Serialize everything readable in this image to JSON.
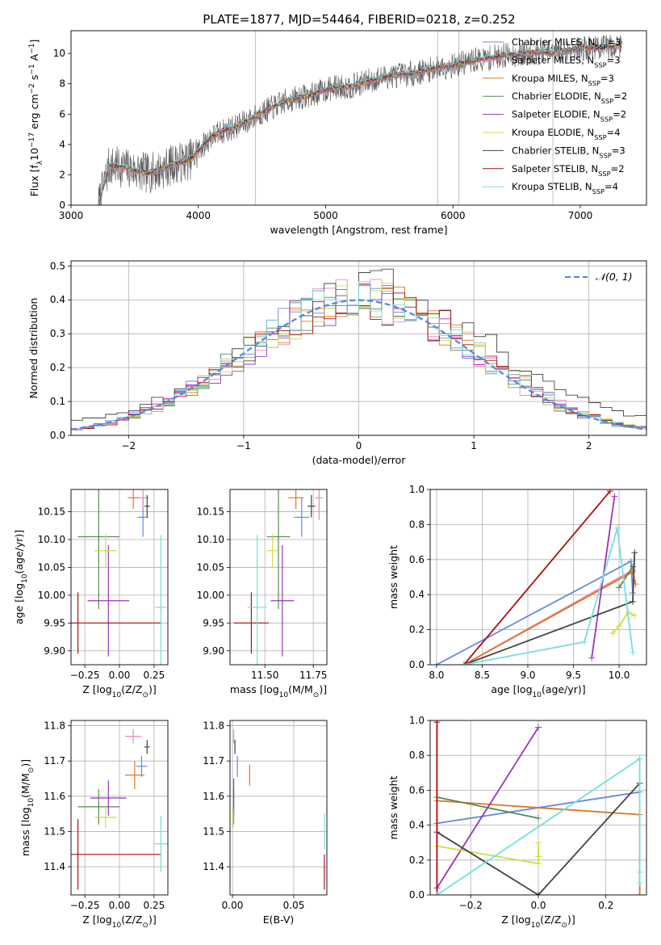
{
  "figure": {
    "title": "PLATE=1877, MJD=54464, FIBERID=0218, z=0.252"
  },
  "colors": {
    "Chabrier MILES": "#6688dd",
    "Salpeter MILES": "#ee88bb",
    "Kroupa MILES": "#dd7722",
    "Chabrier ELODIE": "#558855",
    "Salpeter ELODIE": "#9933bb",
    "Kroupa ELODIE": "#ccdd44",
    "Chabrier STELIB": "#444444",
    "Salpeter STELIB": "#aa1111",
    "Kroupa STELIB": "#77dddd",
    "gaussian": "#5588dd",
    "data_spectrum": "#555555"
  },
  "chart_data": [
    {
      "id": "spectrum",
      "type": "line",
      "xlabel": "wavelength [Angstrom, rest frame]",
      "ylabel_parts": {
        "pre": "Flux [f",
        "sub": "λ",
        "mid": "10",
        "sup": "−17",
        "post": " erg cm",
        "sup2": "−2",
        "post2": " s",
        "sup3": "−1",
        "post3": " A",
        "sup4": "−1",
        "post4": "]"
      },
      "xlim": [
        3000,
        7520
      ],
      "ylim": [
        0,
        11.5
      ],
      "xticks": [
        3000,
        4000,
        5000,
        6000,
        7000
      ],
      "yticks": [
        0,
        2,
        4,
        6,
        8,
        10
      ],
      "grid": false,
      "legend_position": "top-right",
      "legend": [
        {
          "pre": "Chabrier MILES, N",
          "sub": "SSP",
          "post": "=3"
        },
        {
          "pre": "Salpeter MILES, N",
          "sub": "SSP",
          "post": "=3"
        },
        {
          "pre": "Kroupa MILES, N",
          "sub": "SSP",
          "post": "=3"
        },
        {
          "pre": "Chabrier ELODIE, N",
          "sub": "SSP",
          "post": "=2"
        },
        {
          "pre": "Salpeter ELODIE, N",
          "sub": "SSP",
          "post": "=2"
        },
        {
          "pre": "Kroupa ELODIE, N",
          "sub": "SSP",
          "post": "=4"
        },
        {
          "pre": "Chabrier STELIB, N",
          "sub": "SSP",
          "post": "=3"
        },
        {
          "pre": "Salpeter STELIB, N",
          "sub": "SSP",
          "post": "=2"
        },
        {
          "pre": "Kroupa STELIB, N",
          "sub": "SSP",
          "post": "=4"
        }
      ],
      "continuum": {
        "x": [
          3215,
          3300,
          3400,
          3500,
          3600,
          3700,
          3800,
          3900,
          3950,
          4000,
          4100,
          4200,
          4300,
          4400,
          4500,
          4600,
          4700,
          4800,
          4900,
          5000,
          5100,
          5200,
          5300,
          5400,
          5500,
          5600,
          5700,
          5800,
          5900,
          6000,
          6100,
          6200,
          6300,
          6400,
          6500,
          6600,
          6700,
          6800,
          6900,
          7000,
          7100,
          7200,
          7300
        ],
        "y": [
          0.0,
          2.6,
          2.5,
          2.3,
          2.1,
          2.3,
          2.7,
          2.9,
          3.1,
          3.6,
          4.5,
          4.9,
          5.2,
          5.6,
          6.1,
          6.5,
          6.9,
          7.1,
          7.3,
          7.6,
          7.8,
          7.8,
          8.1,
          8.3,
          8.5,
          8.6,
          8.7,
          8.9,
          9.1,
          9.2,
          9.4,
          9.6,
          9.7,
          9.9,
          9.9,
          10.0,
          10.1,
          10.0,
          10.2,
          10.3,
          10.4,
          10.4,
          10.5
        ]
      },
      "spikes": [
        4450,
        5880,
        6045,
        6785
      ]
    },
    {
      "id": "residuals",
      "type": "histogram",
      "xlabel": "(data-model)/error",
      "ylabel": "Normed distribution",
      "xlim": [
        -2.5,
        2.5
      ],
      "ylim": [
        0,
        0.515
      ],
      "xticks": [
        -2,
        -1,
        0,
        1,
        2
      ],
      "yticks": [
        0.0,
        0.1,
        0.2,
        0.3,
        0.4,
        0.5
      ],
      "grid": true,
      "legend_position": "top-right",
      "legend": [
        {
          "text": "𝒩(0, 1)"
        }
      ],
      "bin_width": 0.1
    },
    {
      "id": "age-vs-Z",
      "type": "scatter",
      "xlabel_parts": {
        "pre": "Z [log",
        "sub": "10",
        "post": "(Z/Z",
        "sub2": "⊙",
        "post2": ")]"
      },
      "ylabel_parts": {
        "pre": "age  [log",
        "sub": "10",
        "post": "(age/yr)]"
      },
      "xlim": [
        -0.35,
        0.35
      ],
      "ylim": [
        9.875,
        10.19
      ],
      "xticks": [
        -0.25,
        0.0,
        0.25
      ],
      "xticklabels": [
        "−0.25",
        "0.00",
        "0.25"
      ],
      "yticks": [
        9.9,
        9.95,
        10.0,
        10.05,
        10.1,
        10.15
      ],
      "yticklabels": [
        "9.90",
        "9.95",
        "10.00",
        "10.05",
        "10.10",
        "10.15"
      ],
      "grid": true,
      "points": [
        {
          "model": "Chabrier MILES",
          "x": 0.17,
          "y": 10.14,
          "xerr": 0.04,
          "yerr": 0.035
        },
        {
          "model": "Salpeter MILES",
          "x": 0.17,
          "y": 10.175,
          "xerr": 0.04,
          "yerr": 0.02
        },
        {
          "model": "Kroupa MILES",
          "x": 0.1,
          "y": 10.175,
          "xerr": 0.04,
          "yerr": 0.02
        },
        {
          "model": "Chabrier ELODIE",
          "x": -0.15,
          "y": 10.105,
          "xerr": 0.15,
          "yerr": 0.13
        },
        {
          "model": "Salpeter ELODIE",
          "x": -0.08,
          "y": 9.99,
          "xerr": 0.15,
          "yerr": 0.1
        },
        {
          "model": "Kroupa ELODIE",
          "x": -0.1,
          "y": 10.08,
          "xerr": 0.08,
          "yerr": 0.03
        },
        {
          "model": "Chabrier STELIB",
          "x": 0.2,
          "y": 10.16,
          "xerr": 0.02,
          "yerr": 0.02
        },
        {
          "model": "Salpeter STELIB",
          "x": -0.3,
          "y": 9.95,
          "xerr": 0.6,
          "yerr": 0.055
        },
        {
          "model": "Kroupa STELIB",
          "x": 0.3,
          "y": 9.978,
          "xerr": 0.04,
          "yerr": 0.13
        }
      ]
    },
    {
      "id": "age-vs-mass",
      "type": "scatter",
      "xlabel_parts": {
        "pre": "mass [log",
        "sub": "10",
        "post": "(M/M",
        "sub2": "⊙",
        "post2": ")]"
      },
      "xlim": [
        11.32,
        11.82
      ],
      "ylim": [
        9.875,
        10.19
      ],
      "xticks": [
        11.5,
        11.75
      ],
      "xticklabels": [
        "11.50",
        "11.75"
      ],
      "yticks": [
        9.9,
        9.95,
        10.0,
        10.05,
        10.1,
        10.15
      ],
      "yticklabels": [
        "9.90",
        "9.95",
        "10.00",
        "10.05",
        "10.10",
        "10.15"
      ],
      "grid": true,
      "points": [
        {
          "model": "Chabrier MILES",
          "x": 11.69,
          "y": 10.14,
          "xerr": 0.04,
          "yerr": 0.035
        },
        {
          "model": "Salpeter MILES",
          "x": 11.78,
          "y": 10.175,
          "xerr": 0.02,
          "yerr": 0.04
        },
        {
          "model": "Kroupa MILES",
          "x": 11.66,
          "y": 10.175,
          "xerr": 0.04,
          "yerr": 0.02
        },
        {
          "model": "Chabrier ELODIE",
          "x": 11.57,
          "y": 10.105,
          "xerr": 0.06,
          "yerr": 0.13
        },
        {
          "model": "Salpeter ELODIE",
          "x": 11.59,
          "y": 9.99,
          "xerr": 0.06,
          "yerr": 0.1
        },
        {
          "model": "Kroupa ELODIE",
          "x": 11.54,
          "y": 10.08,
          "xerr": 0.03,
          "yerr": 0.03
        },
        {
          "model": "Chabrier STELIB",
          "x": 11.74,
          "y": 10.16,
          "xerr": 0.02,
          "yerr": 0.02
        },
        {
          "model": "Salpeter STELIB",
          "x": 11.43,
          "y": 9.95,
          "xerr": 0.09,
          "yerr": 0.055
        },
        {
          "model": "Kroupa STELIB",
          "x": 11.46,
          "y": 9.978,
          "xerr": 0.05,
          "yerr": 0.13
        }
      ]
    },
    {
      "id": "weight-vs-age",
      "type": "line",
      "xlabel_parts": {
        "pre": "age  [log",
        "sub": "10",
        "post": "(age/yr)]"
      },
      "ylabel": "mass weight",
      "xlim": [
        7.93,
        10.3
      ],
      "ylim": [
        0,
        1.0
      ],
      "xticks": [
        8.0,
        8.5,
        9.0,
        9.5,
        10.0
      ],
      "xticklabels": [
        "8.0",
        "8.5",
        "9.0",
        "9.5",
        "10.0"
      ],
      "yticks": [
        0.0,
        0.2,
        0.4,
        0.6,
        0.8,
        1.0
      ],
      "yticklabels": [
        "0.0",
        "0.2",
        "0.4",
        "0.6",
        "0.8",
        "1.0"
      ],
      "grid": true,
      "series": [
        {
          "model": "Chabrier MILES",
          "x": [
            8.0,
            10.13,
            10.15
          ],
          "y": [
            0.0,
            0.59,
            0.41
          ]
        },
        {
          "model": "Salpeter MILES",
          "x": [
            8.3,
            10.15
          ],
          "y": [
            0.0,
            0.54
          ]
        },
        {
          "model": "Kroupa MILES",
          "x": [
            8.3,
            10.15,
            10.18
          ],
          "y": [
            0.0,
            0.53,
            0.46
          ]
        },
        {
          "model": "Chabrier ELODIE",
          "x": [
            10.0,
            10.15
          ],
          "y": [
            0.44,
            0.56
          ]
        },
        {
          "model": "Salpeter ELODIE",
          "x": [
            9.7,
            9.95
          ],
          "y": [
            0.04,
            0.96
          ]
        },
        {
          "model": "Kroupa ELODIE",
          "x": [
            9.93,
            10.0,
            10.1,
            10.17
          ],
          "y": [
            0.18,
            0.22,
            0.3,
            0.28
          ]
        },
        {
          "model": "Chabrier STELIB",
          "x": [
            8.3,
            10.15,
            10.17
          ],
          "y": [
            0.0,
            0.36,
            0.64
          ]
        },
        {
          "model": "Salpeter STELIB",
          "x": [
            8.3,
            9.9
          ],
          "y": [
            0.0,
            0.99
          ]
        },
        {
          "model": "Kroupa STELIB",
          "x": [
            8.3,
            9.62,
            9.98,
            10.15
          ],
          "y": [
            0.0,
            0.13,
            0.78,
            0.07
          ]
        }
      ]
    },
    {
      "id": "mass-vs-Z",
      "type": "scatter",
      "xlabel_parts": {
        "pre": "Z [log",
        "sub": "10",
        "post": "(Z/Z",
        "sub2": "⊙",
        "post2": ")]"
      },
      "ylabel_parts": {
        "pre": "mass [log",
        "sub": "10",
        "post": "(M/M",
        "sub2": "⊙",
        "post2": ")]"
      },
      "xlim": [
        -0.35,
        0.35
      ],
      "ylim": [
        11.32,
        11.815
      ],
      "xticks": [
        -0.25,
        0.0,
        0.25
      ],
      "xticklabels": [
        "−0.25",
        "0.00",
        "0.25"
      ],
      "yticks": [
        11.4,
        11.5,
        11.6,
        11.7,
        11.8
      ],
      "yticklabels": [
        "11.4",
        "11.5",
        "11.6",
        "11.7",
        "11.8"
      ],
      "grid": true,
      "points": [
        {
          "model": "Chabrier MILES",
          "x": 0.16,
          "y": 11.685,
          "xerr": 0.04,
          "yerr": 0.03
        },
        {
          "model": "Salpeter MILES",
          "x": 0.1,
          "y": 11.77,
          "xerr": 0.06,
          "yerr": 0.02
        },
        {
          "model": "Kroupa MILES",
          "x": 0.11,
          "y": 11.66,
          "xerr": 0.07,
          "yerr": 0.04
        },
        {
          "model": "Chabrier ELODIE",
          "x": -0.15,
          "y": 11.57,
          "xerr": 0.15,
          "yerr": 0.05
        },
        {
          "model": "Salpeter ELODIE",
          "x": -0.08,
          "y": 11.595,
          "xerr": 0.13,
          "yerr": 0.05
        },
        {
          "model": "Kroupa ELODIE",
          "x": -0.1,
          "y": 11.54,
          "xerr": 0.08,
          "yerr": 0.03
        },
        {
          "model": "Chabrier STELIB",
          "x": 0.2,
          "y": 11.74,
          "xerr": 0.02,
          "yerr": 0.02
        },
        {
          "model": "Salpeter STELIB",
          "x": -0.3,
          "y": 11.435,
          "xerr": 0.6,
          "yerr": 0.1
        },
        {
          "model": "Kroupa STELIB",
          "x": 0.3,
          "y": 11.465,
          "xerr": 0.05,
          "yerr": 0.08
        }
      ]
    },
    {
      "id": "mass-vs-EBV",
      "type": "scatter",
      "xlabel": "E(B-V)",
      "xlim": [
        -0.002,
        0.077
      ],
      "ylim": [
        11.32,
        11.815
      ],
      "xticks": [
        0.0,
        0.05
      ],
      "xticklabels": [
        "0.00",
        "0.05"
      ],
      "yticks": [
        11.4,
        11.5,
        11.6,
        11.7,
        11.8
      ],
      "yticklabels": [
        "11.4",
        "11.5",
        "11.6",
        "11.7",
        "11.8"
      ],
      "grid": true,
      "points": [
        {
          "model": "Chabrier MILES",
          "x": 0.004,
          "y": 11.685,
          "xerr": 0.0,
          "yerr": 0.03
        },
        {
          "model": "Salpeter MILES",
          "x": 0.001,
          "y": 11.77,
          "xerr": 0.0,
          "yerr": 0.02
        },
        {
          "model": "Kroupa MILES",
          "x": 0.014,
          "y": 11.66,
          "xerr": 0.0,
          "yerr": 0.03
        },
        {
          "model": "Chabrier ELODIE",
          "x": 0.001,
          "y": 11.57,
          "xerr": 0.0,
          "yerr": 0.05
        },
        {
          "model": "Salpeter ELODIE",
          "x": 0.001,
          "y": 11.6,
          "xerr": 0.0,
          "yerr": 0.05
        },
        {
          "model": "Kroupa ELODIE",
          "x": 0.0005,
          "y": 11.54,
          "xerr": 0.0,
          "yerr": 0.03
        },
        {
          "model": "Chabrier STELIB",
          "x": 0.002,
          "y": 11.74,
          "xerr": 0.0,
          "yerr": 0.02
        },
        {
          "model": "Salpeter STELIB",
          "x": 0.075,
          "y": 11.385,
          "xerr": 0.0,
          "yerr": 0.05
        },
        {
          "model": "Kroupa STELIB",
          "x": 0.075,
          "y": 11.5,
          "xerr": 0.0,
          "yerr": 0.05
        }
      ]
    },
    {
      "id": "weight-vs-Z",
      "type": "line",
      "xlabel_parts": {
        "pre": "Z [log",
        "sub": "10",
        "post": "(Z/Z",
        "sub2": "⊙",
        "post2": ")]"
      },
      "ylabel": "mass weight",
      "xlim": [
        -0.32,
        0.32
      ],
      "ylim": [
        0,
        1.0
      ],
      "xticks": [
        -0.2,
        0.0,
        0.2
      ],
      "xticklabels": [
        "−0.2",
        "0.0",
        "0.2"
      ],
      "yticks": [
        0.0,
        0.2,
        0.4,
        0.6,
        0.8,
        1.0
      ],
      "yticklabels": [
        "0.0",
        "0.2",
        "0.4",
        "0.6",
        "0.8",
        "1.0"
      ],
      "grid": true,
      "series": [
        {
          "model": "Chabrier MILES",
          "x": [
            -0.3,
            0.3
          ],
          "y": [
            0.41,
            0.59
          ]
        },
        {
          "model": "Salpeter MILES",
          "x": [
            -0.3,
            -0.3
          ],
          "y": [
            0.0,
            1.0
          ]
        },
        {
          "model": "Kroupa MILES",
          "x": [
            -0.3,
            0.3,
            0.3
          ],
          "y": [
            0.54,
            0.46,
            0.0
          ]
        },
        {
          "model": "Chabrier ELODIE",
          "x": [
            -0.3,
            0.0
          ],
          "y": [
            0.56,
            0.44
          ]
        },
        {
          "model": "Salpeter ELODIE",
          "x": [
            -0.3,
            0.0
          ],
          "y": [
            0.04,
            0.96
          ]
        },
        {
          "model": "Kroupa ELODIE",
          "x": [
            -0.3,
            0.0,
            0.0,
            0.0
          ],
          "y": [
            0.28,
            0.18,
            0.22,
            0.3
          ]
        },
        {
          "model": "Chabrier STELIB",
          "x": [
            -0.3,
            0.0,
            0.3
          ],
          "y": [
            0.36,
            0.0,
            0.64
          ]
        },
        {
          "model": "Salpeter STELIB",
          "x": [
            -0.3,
            -0.3
          ],
          "y": [
            0.0,
            0.99
          ]
        },
        {
          "model": "Kroupa STELIB",
          "x": [
            -0.3,
            0.3,
            0.3,
            0.3
          ],
          "y": [
            0.0,
            0.78,
            0.13,
            0.07
          ]
        }
      ]
    }
  ]
}
